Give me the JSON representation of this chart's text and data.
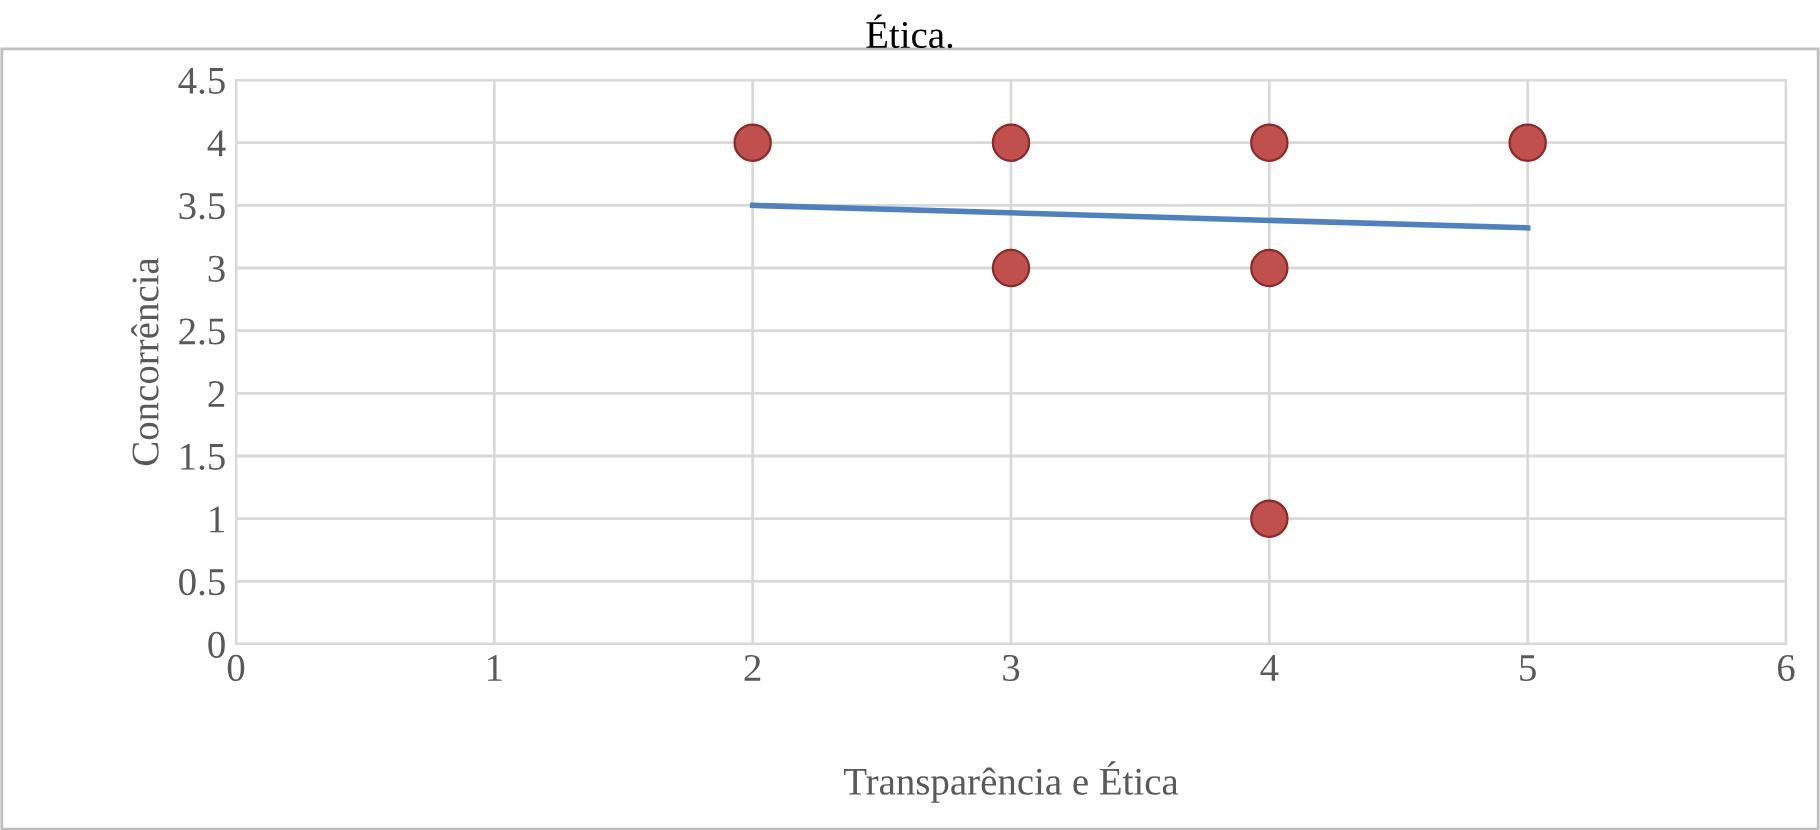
{
  "chart_data": {
    "type": "scatter",
    "title": "Ética.",
    "xlabel": "Transparência e Ética",
    "ylabel": "Concorrência",
    "xlim": [
      0,
      6
    ],
    "xticks": [
      0,
      1,
      2,
      3,
      4,
      5,
      6
    ],
    "ylim": [
      0,
      4.5
    ],
    "yticks": [
      0,
      0.5,
      1,
      1.5,
      2,
      2.5,
      3,
      3.5,
      4,
      4.5
    ],
    "grid": true,
    "legend": false,
    "series": [
      {
        "color": "#c0504d",
        "marker": "circle",
        "x": [
          2,
          3,
          4,
          5,
          3,
          4,
          4
        ],
        "values": [
          4,
          4,
          4,
          4,
          3,
          3,
          1
        ]
      },
      {
        "type": "line",
        "marker": "none",
        "color": "#4f81bd",
        "x": [
          2,
          5
        ],
        "values": [
          3.5,
          3.32
        ],
        "line_style": "solid"
      }
    ]
  }
}
